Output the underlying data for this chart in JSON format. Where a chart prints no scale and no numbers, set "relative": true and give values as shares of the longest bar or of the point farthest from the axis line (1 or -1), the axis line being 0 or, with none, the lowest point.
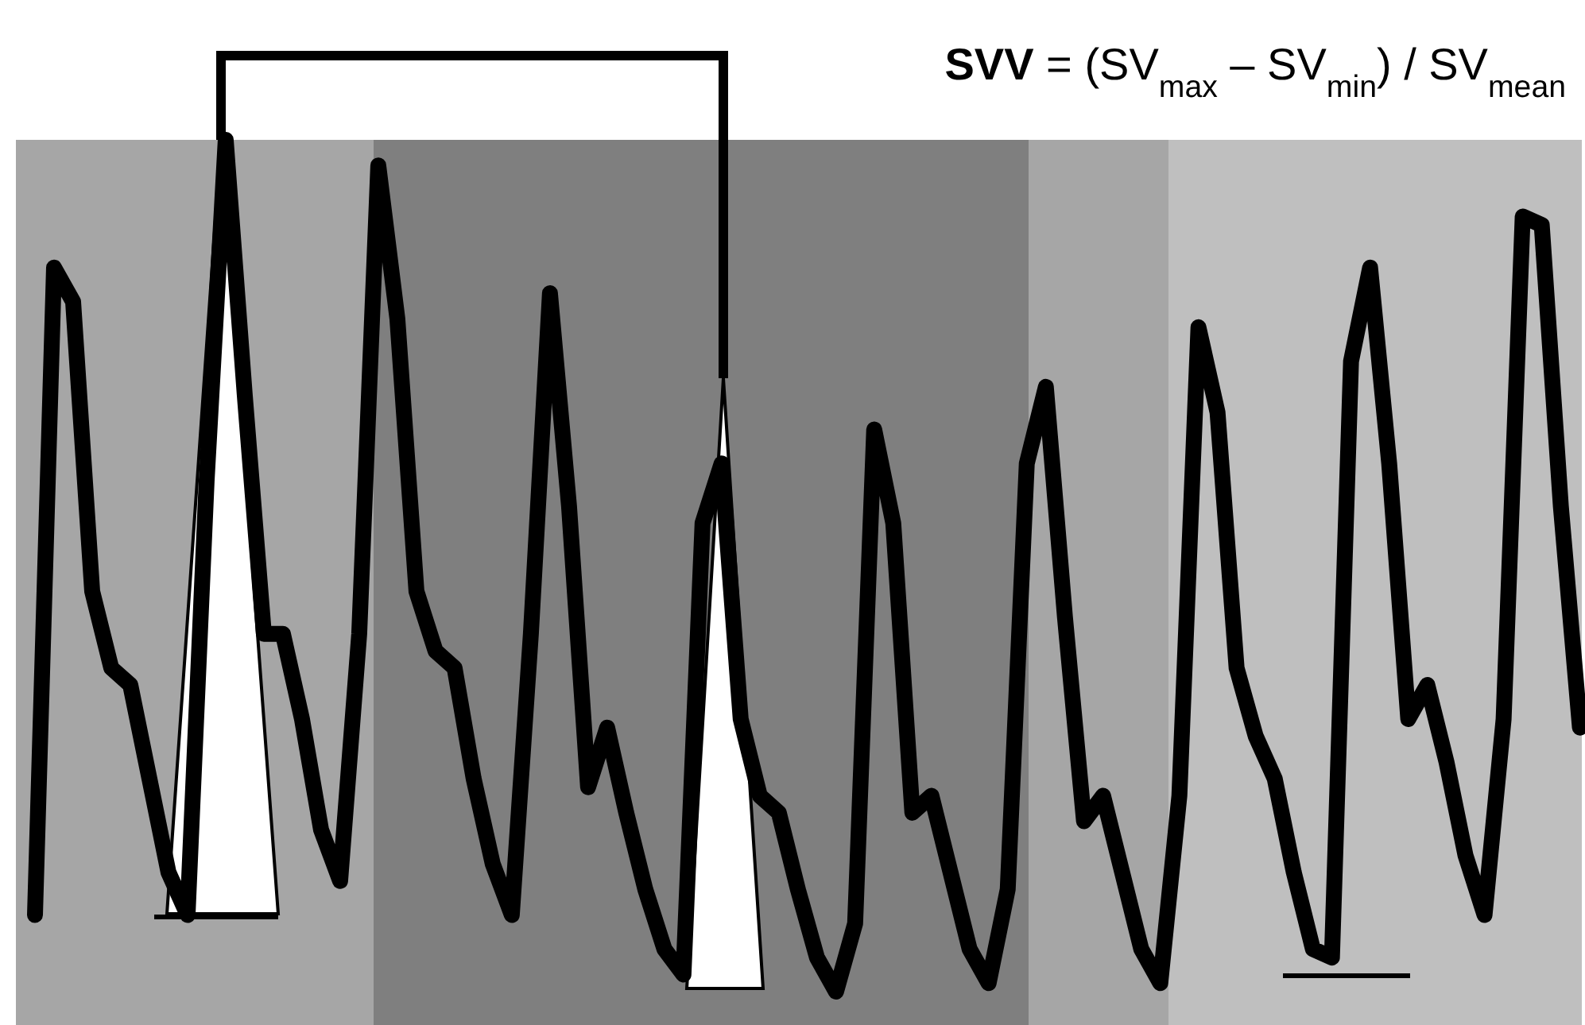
{
  "chart_data": {
    "type": "line",
    "title": "SVV = (SV$_{max}$ – SV$_{min}$) / SV$_{mean}$",
    "relative": true,
    "color": "#000000",
    "categories": [
      null,
      null,
      null,
      null,
      null,
      null,
      null,
      null,
      null,
      null,
      null,
      null,
      null,
      null,
      null,
      null,
      null,
      null,
      null,
      null,
      null,
      null,
      null,
      null,
      null,
      null,
      null,
      null,
      null,
      null,
      null,
      null,
      null,
      null,
      null,
      null,
      null,
      null,
      null,
      null,
      null,
      null,
      null,
      null,
      null,
      null,
      null,
      null,
      null,
      null,
      null,
      null,
      null,
      null,
      null,
      null,
      null,
      null,
      null,
      null,
      null,
      null,
      null,
      null,
      null,
      null,
      null,
      null,
      null,
      null,
      null,
      null,
      null,
      null,
      null,
      null,
      null,
      null,
      null,
      null,
      null,
      null
    ],
    "values": [
      0.09,
      0.85,
      0.81,
      0.47,
      0.38,
      0.36,
      0.25,
      0.14,
      0.09,
      0.6,
      1,
      0.7,
      0.42,
      0.42,
      0.32,
      0.19,
      0.13,
      0.42,
      0.97,
      0.79,
      0.47,
      0.4,
      0.38,
      0.25,
      0.15,
      0.09,
      0.42,
      0.82,
      0.57,
      0.24,
      0.31,
      0.21,
      0.12,
      0.05,
      0.02,
      0.55,
      0.62,
      0.32,
      0.23,
      0.21,
      0.12,
      0.04,
      0,
      0.08,
      0.66,
      0.55,
      0.21,
      0.23,
      0.14,
      0.05,
      0.01,
      0.12,
      0.62,
      0.71,
      0.44,
      0.2,
      0.23,
      0.14,
      0.05,
      0.01,
      0.23,
      0.78,
      0.68,
      0.38,
      0.3,
      0.25,
      0.14,
      0.05,
      0.04,
      0.74,
      0.85,
      0.62,
      0.32,
      0.36,
      0.27,
      0.16,
      0.09,
      0.32,
      0.91,
      0.9,
      0.57,
      0.31
    ]
  }
}
